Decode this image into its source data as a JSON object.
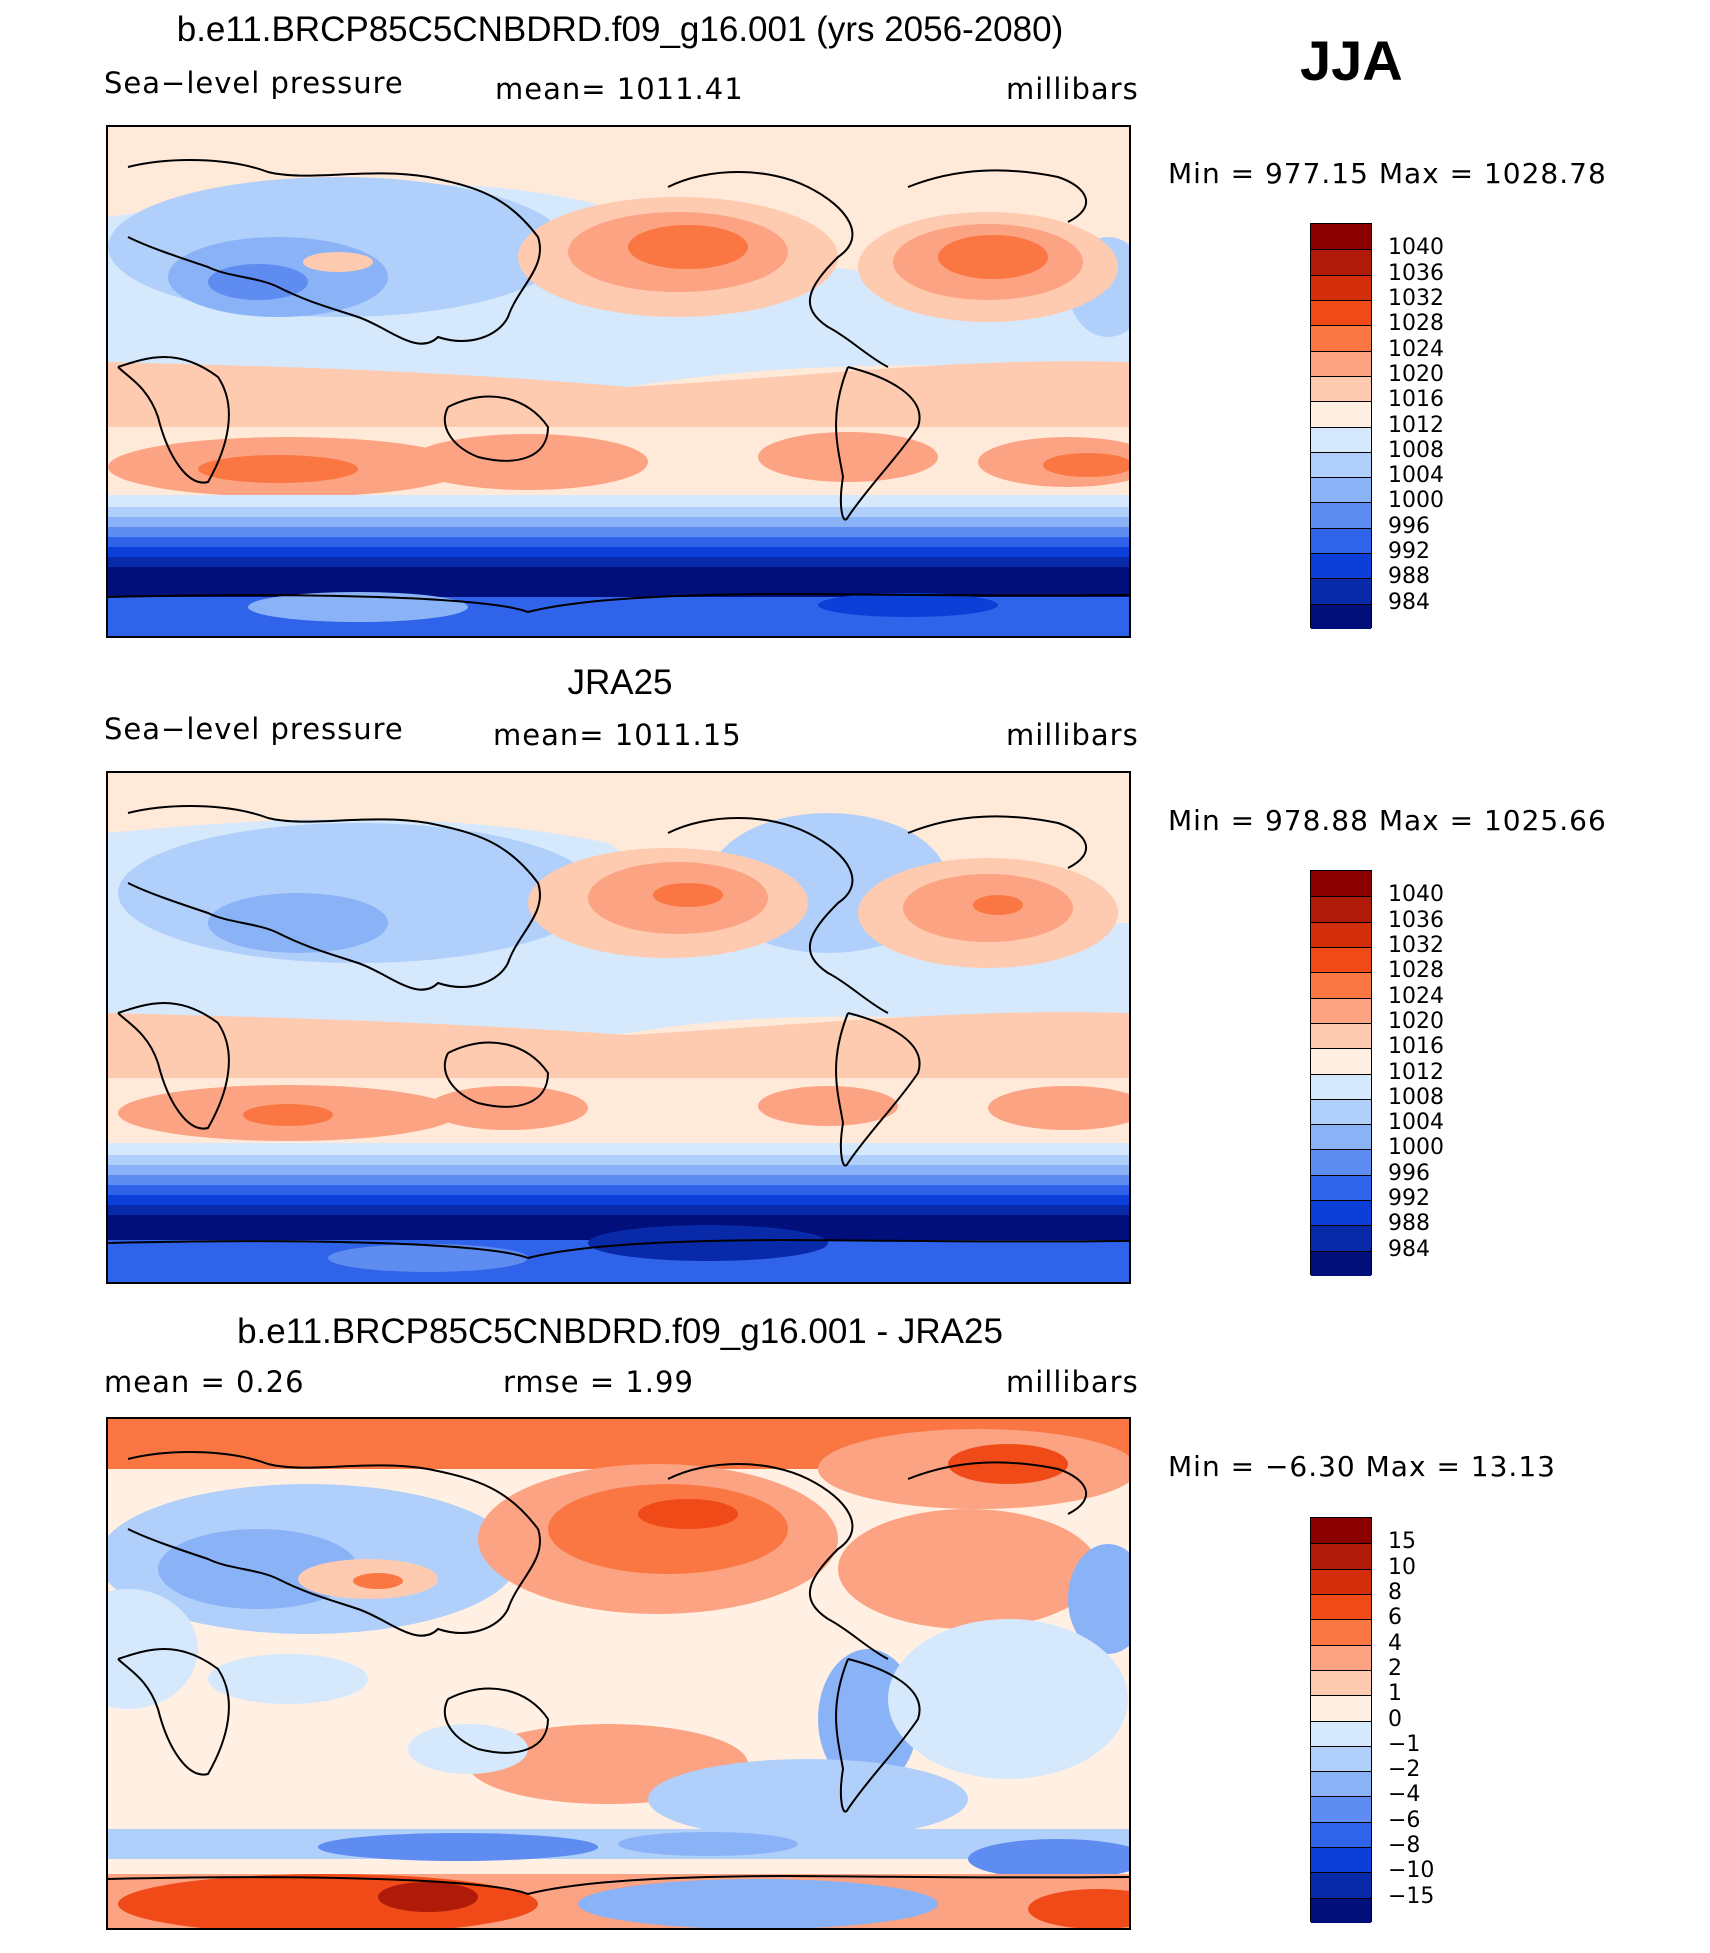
{
  "season": "JJA",
  "panels": [
    {
      "title": "b.e11.BRCP85C5CNBDRD.f09_g16.001 (yrs 2056-2080)",
      "left_text": "Sea−level pressure",
      "center_text": "mean=  1011.41",
      "units": "millibars",
      "minmax": "Min  =  977.15  Max  =  1028.78"
    },
    {
      "title": "JRA25",
      "left_text": "Sea−level pressure",
      "center_text": "mean=  1011.15",
      "units": "millibars",
      "minmax": "Min  =  978.88  Max  =  1025.66"
    },
    {
      "title": "b.e11.BRCP85C5CNBDRD.f09_g16.001 - JRA25",
      "left_text": "mean  =     0.26",
      "center_text": "rmse  =     1.99",
      "units": "millibars",
      "minmax": "Min  =    −6.30  Max  =    13.13"
    }
  ],
  "legends": {
    "abs": {
      "labels": [
        "1040",
        "1036",
        "1032",
        "1028",
        "1024",
        "1020",
        "1016",
        "1012",
        "1008",
        "1004",
        "1000",
        "996",
        "992",
        "988",
        "984"
      ],
      "colors": [
        "#8b0000",
        "#b01a08",
        "#d42d0c",
        "#f04a18",
        "#fa7744",
        "#fca383",
        "#fecab0",
        "#fff0e3",
        "#d5e8fc",
        "#b0cffa",
        "#8ab2f6",
        "#5f8cf0",
        "#2f63ea",
        "#0c3fd8",
        "#0829a8",
        "#000f7a"
      ]
    },
    "diff": {
      "labels": [
        "15",
        "10",
        "8",
        "6",
        "4",
        "2",
        "1",
        "0",
        "−1",
        "−2",
        "−4",
        "−6",
        "−8",
        "−10",
        "−15"
      ],
      "colors": [
        "#8b0000",
        "#b01a08",
        "#d42d0c",
        "#f04a18",
        "#fa7744",
        "#fca383",
        "#fecab0",
        "#fff0e3",
        "#d5e8fc",
        "#b0cffa",
        "#8ab2f6",
        "#5f8cf0",
        "#2f63ea",
        "#0c3fd8",
        "#0829a8",
        "#000f7a"
      ]
    }
  }
}
